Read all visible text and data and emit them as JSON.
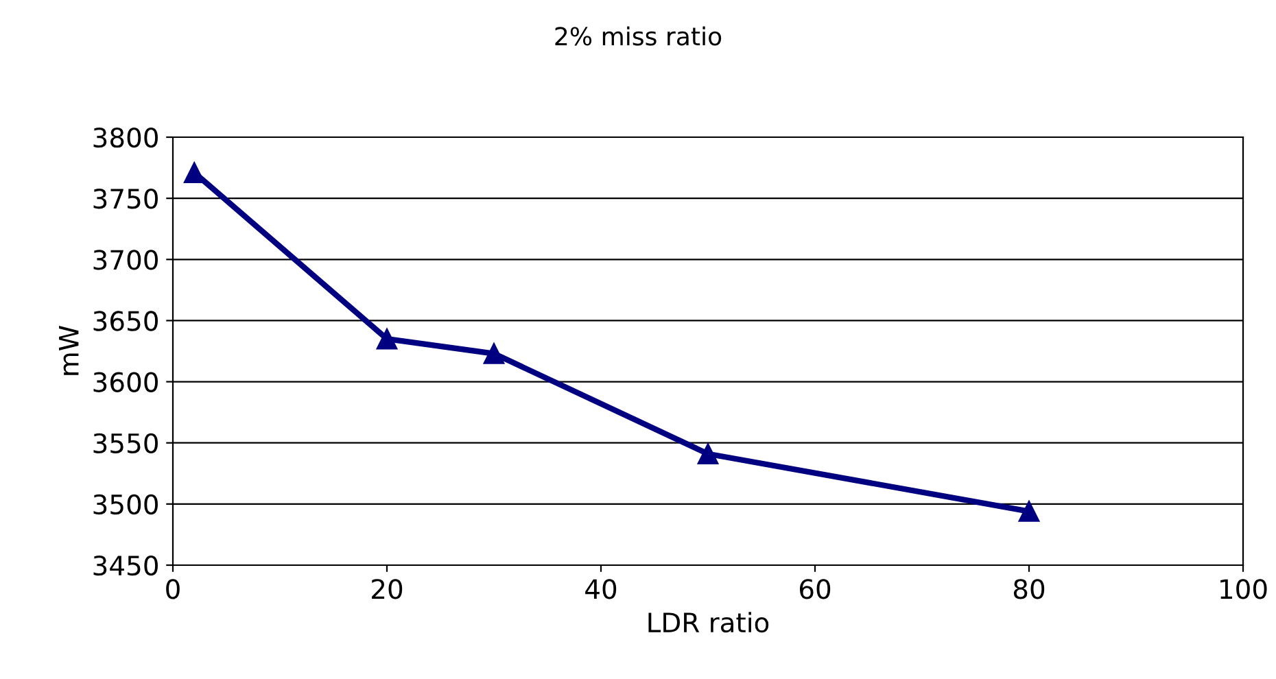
{
  "chart_data": {
    "type": "line",
    "title": "2% miss ratio",
    "xlabel": "LDR ratio",
    "ylabel": "mW",
    "x": [
      2,
      20,
      30,
      50,
      80
    ],
    "series": [
      {
        "color": "#000080",
        "values": [
          3771,
          3635,
          3623,
          3541,
          3494
        ]
      }
    ],
    "xlim": [
      0,
      100
    ],
    "xticks": [
      0,
      20,
      40,
      60,
      80,
      100
    ],
    "ylim": [
      3450,
      3800
    ],
    "yticks": [
      3450,
      3500,
      3550,
      3600,
      3650,
      3700,
      3750,
      3800
    ],
    "grid": "y",
    "marker": "triangle",
    "line_style": "solid",
    "legend": false
  }
}
